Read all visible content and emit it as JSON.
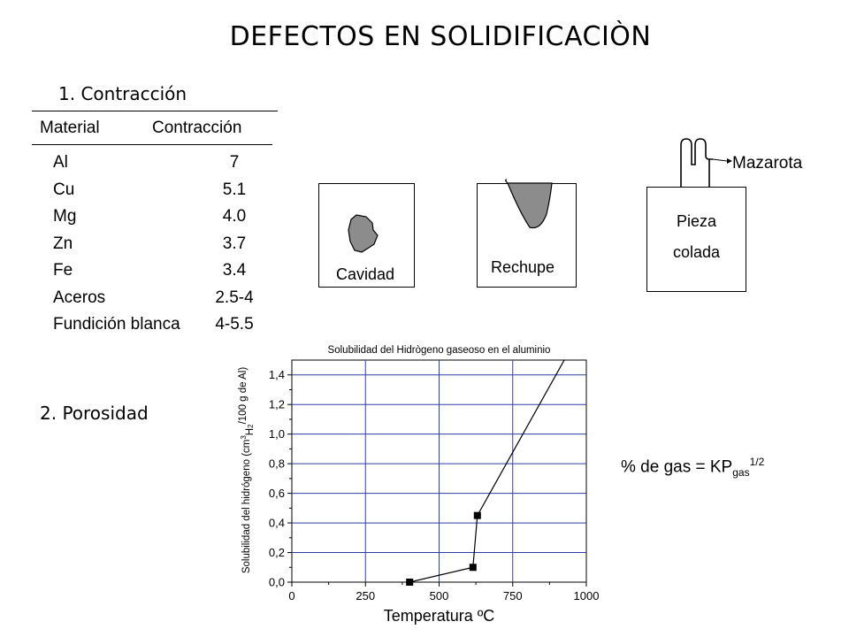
{
  "title": "DEFECTOS EN SOLIDIFICACIÒN",
  "contraction": {
    "heading": "1. Contracción",
    "table": {
      "headers": [
        "Material",
        "Contracción"
      ],
      "rows": [
        {
          "material": "Al",
          "value": "7"
        },
        {
          "material": "Cu",
          "value": "5.1"
        },
        {
          "material": "Mg",
          "value": "4.0"
        },
        {
          "material": "Zn",
          "value": "3.7"
        },
        {
          "material": "Fe",
          "value": "3.4"
        },
        {
          "material": "Aceros",
          "value": "2.5-4"
        },
        {
          "material": "Fundición blanca",
          "value": "4-5.5"
        }
      ]
    }
  },
  "diagrams": {
    "cavidad_label": "Cavidad",
    "rechupe_label": "Rechupe",
    "pieza_label_line1": "Pieza",
    "pieza_label_line2": "colada",
    "mazarota_label": "Mazarota",
    "fill_color": "#8c8c8c"
  },
  "porosity": {
    "heading": "2. Porosidad",
    "formula": {
      "prefix": "% de gas = KP",
      "subscript": "gas",
      "superscript": "1/2"
    }
  },
  "chart_data": {
    "type": "line",
    "title": "Solubilidad del Hidrògeno gaseoso en el aluminio",
    "xlabel": "Temperatura ºC",
    "ylabel_parts": [
      "Solubilidad del hidrógeno (cm",
      "3",
      "H",
      "2",
      "/100 g de Al)"
    ],
    "xlim": [
      0,
      1000
    ],
    "ylim": [
      0,
      1.5
    ],
    "xticks": [
      0,
      250,
      500,
      750,
      1000
    ],
    "xtick_labels": [
      "0",
      "250",
      "500",
      "750",
      "1000"
    ],
    "yticks": [
      0,
      0.2,
      0.4,
      0.6,
      0.8,
      1.0,
      1.2,
      1.4
    ],
    "ytick_labels": [
      "0,0",
      "0,2",
      "0,4",
      "0,6",
      "0,8",
      "1,0",
      "1,2",
      "1,4"
    ],
    "grid": true,
    "markers": [
      {
        "x": 400,
        "y": 0.0
      },
      {
        "x": 615,
        "y": 0.1
      },
      {
        "x": 630,
        "y": 0.45
      }
    ],
    "line": [
      {
        "x": 400,
        "y": 0.0
      },
      {
        "x": 615,
        "y": 0.1
      },
      {
        "x": 630,
        "y": 0.45
      },
      {
        "x": 925,
        "y": 1.5
      }
    ],
    "grid_color": "#2e3ea8"
  }
}
